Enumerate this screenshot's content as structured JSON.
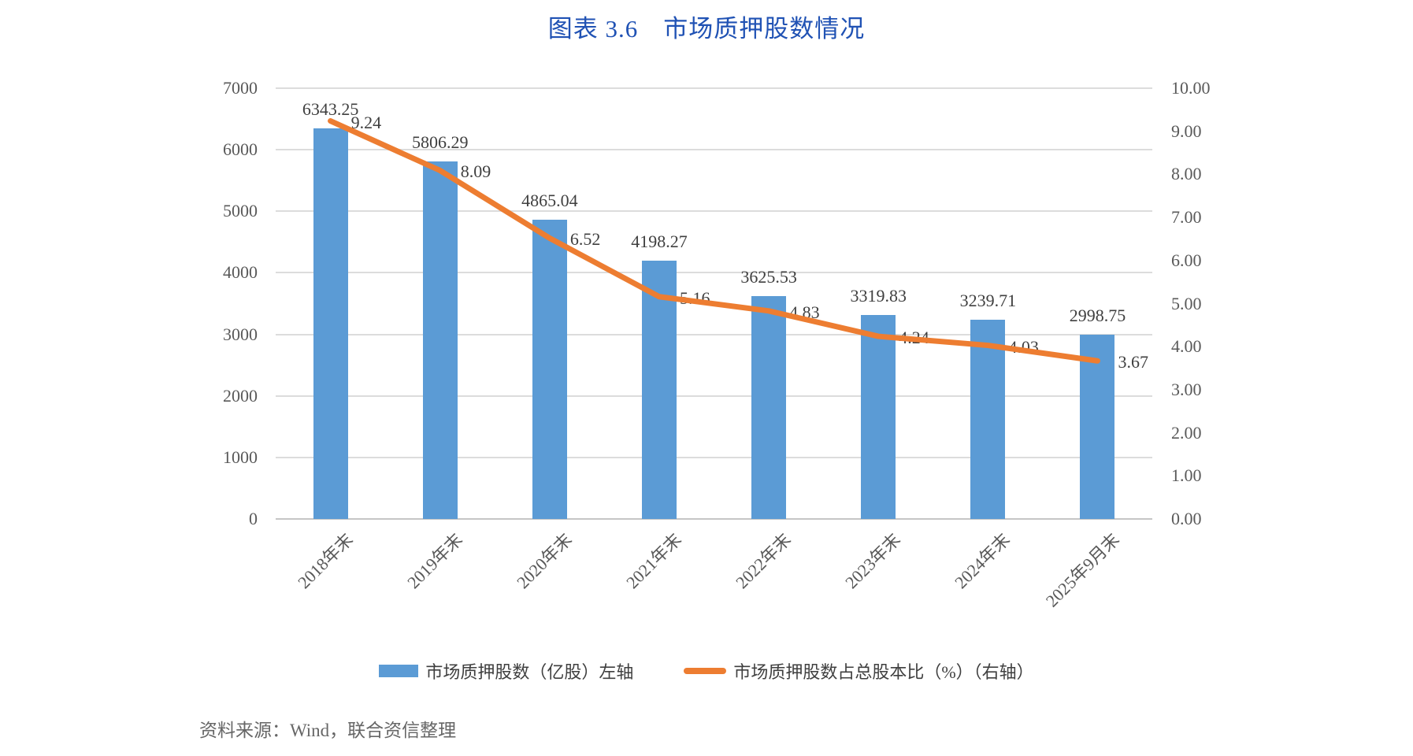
{
  "page": {
    "title": "图表 3.6　市场质押股数情况",
    "source": "资料来源：Wind，联合资信整理"
  },
  "legend": {
    "items": [
      {
        "label": "市场质押股数（亿股）左轴",
        "swatch": "bar",
        "color": "#5B9BD5"
      },
      {
        "label": "市场质押股数占总股本比（%）（右轴）",
        "swatch": "line",
        "color": "#ED7D31"
      }
    ]
  },
  "chart_data": {
    "type": "bar",
    "subtype": "combo-bar-line-dual-axis",
    "title": "图表 3.6　市场质押股数情况",
    "categories": [
      "2018年末",
      "2019年末",
      "2020年末",
      "2021年末",
      "2022年末",
      "2023年末",
      "2024年末",
      "2025年9月末"
    ],
    "series": [
      {
        "name": "市场质押股数（亿股）左轴",
        "type": "bar",
        "axis": "left",
        "color": "#5B9BD5",
        "values": [
          6343.25,
          5806.29,
          4865.04,
          4198.27,
          3625.53,
          3319.83,
          3239.71,
          2998.75
        ],
        "data_labels": [
          "6343.25",
          "5806.29",
          "4865.04",
          "4198.27",
          "3625.53",
          "3319.83",
          "3239.71",
          "2998.75"
        ]
      },
      {
        "name": "市场质押股数占总股本比（%）（右轴）",
        "type": "line",
        "axis": "right",
        "color": "#ED7D31",
        "values": [
          9.24,
          8.09,
          6.52,
          5.16,
          4.83,
          4.24,
          4.03,
          3.67
        ],
        "data_labels": [
          "9.24",
          "8.09",
          "6.52",
          "5.16",
          "4.83",
          "4.24",
          "4.03",
          "3.67"
        ]
      }
    ],
    "left_axis": {
      "min": 0,
      "max": 7000,
      "step": 1000,
      "tick_labels": [
        "0",
        "1000",
        "2000",
        "3000",
        "4000",
        "5000",
        "6000",
        "7000"
      ]
    },
    "right_axis": {
      "min": 0,
      "max": 10,
      "step": 1,
      "tick_labels": [
        "0.00",
        "1.00",
        "2.00",
        "3.00",
        "4.00",
        "5.00",
        "6.00",
        "7.00",
        "8.00",
        "9.00",
        "10.00"
      ]
    },
    "grid": true,
    "legend_position": "bottom"
  },
  "colors": {
    "bar": "#5B9BD5",
    "line": "#ED7D31",
    "title": "#2052B4",
    "grid": "#DCDCDC",
    "axis_line": "#C6C6C6",
    "tick_text": "#595959",
    "data_label": "#3F3F3F",
    "source_text": "#666666",
    "background": "#FFFFFF"
  }
}
